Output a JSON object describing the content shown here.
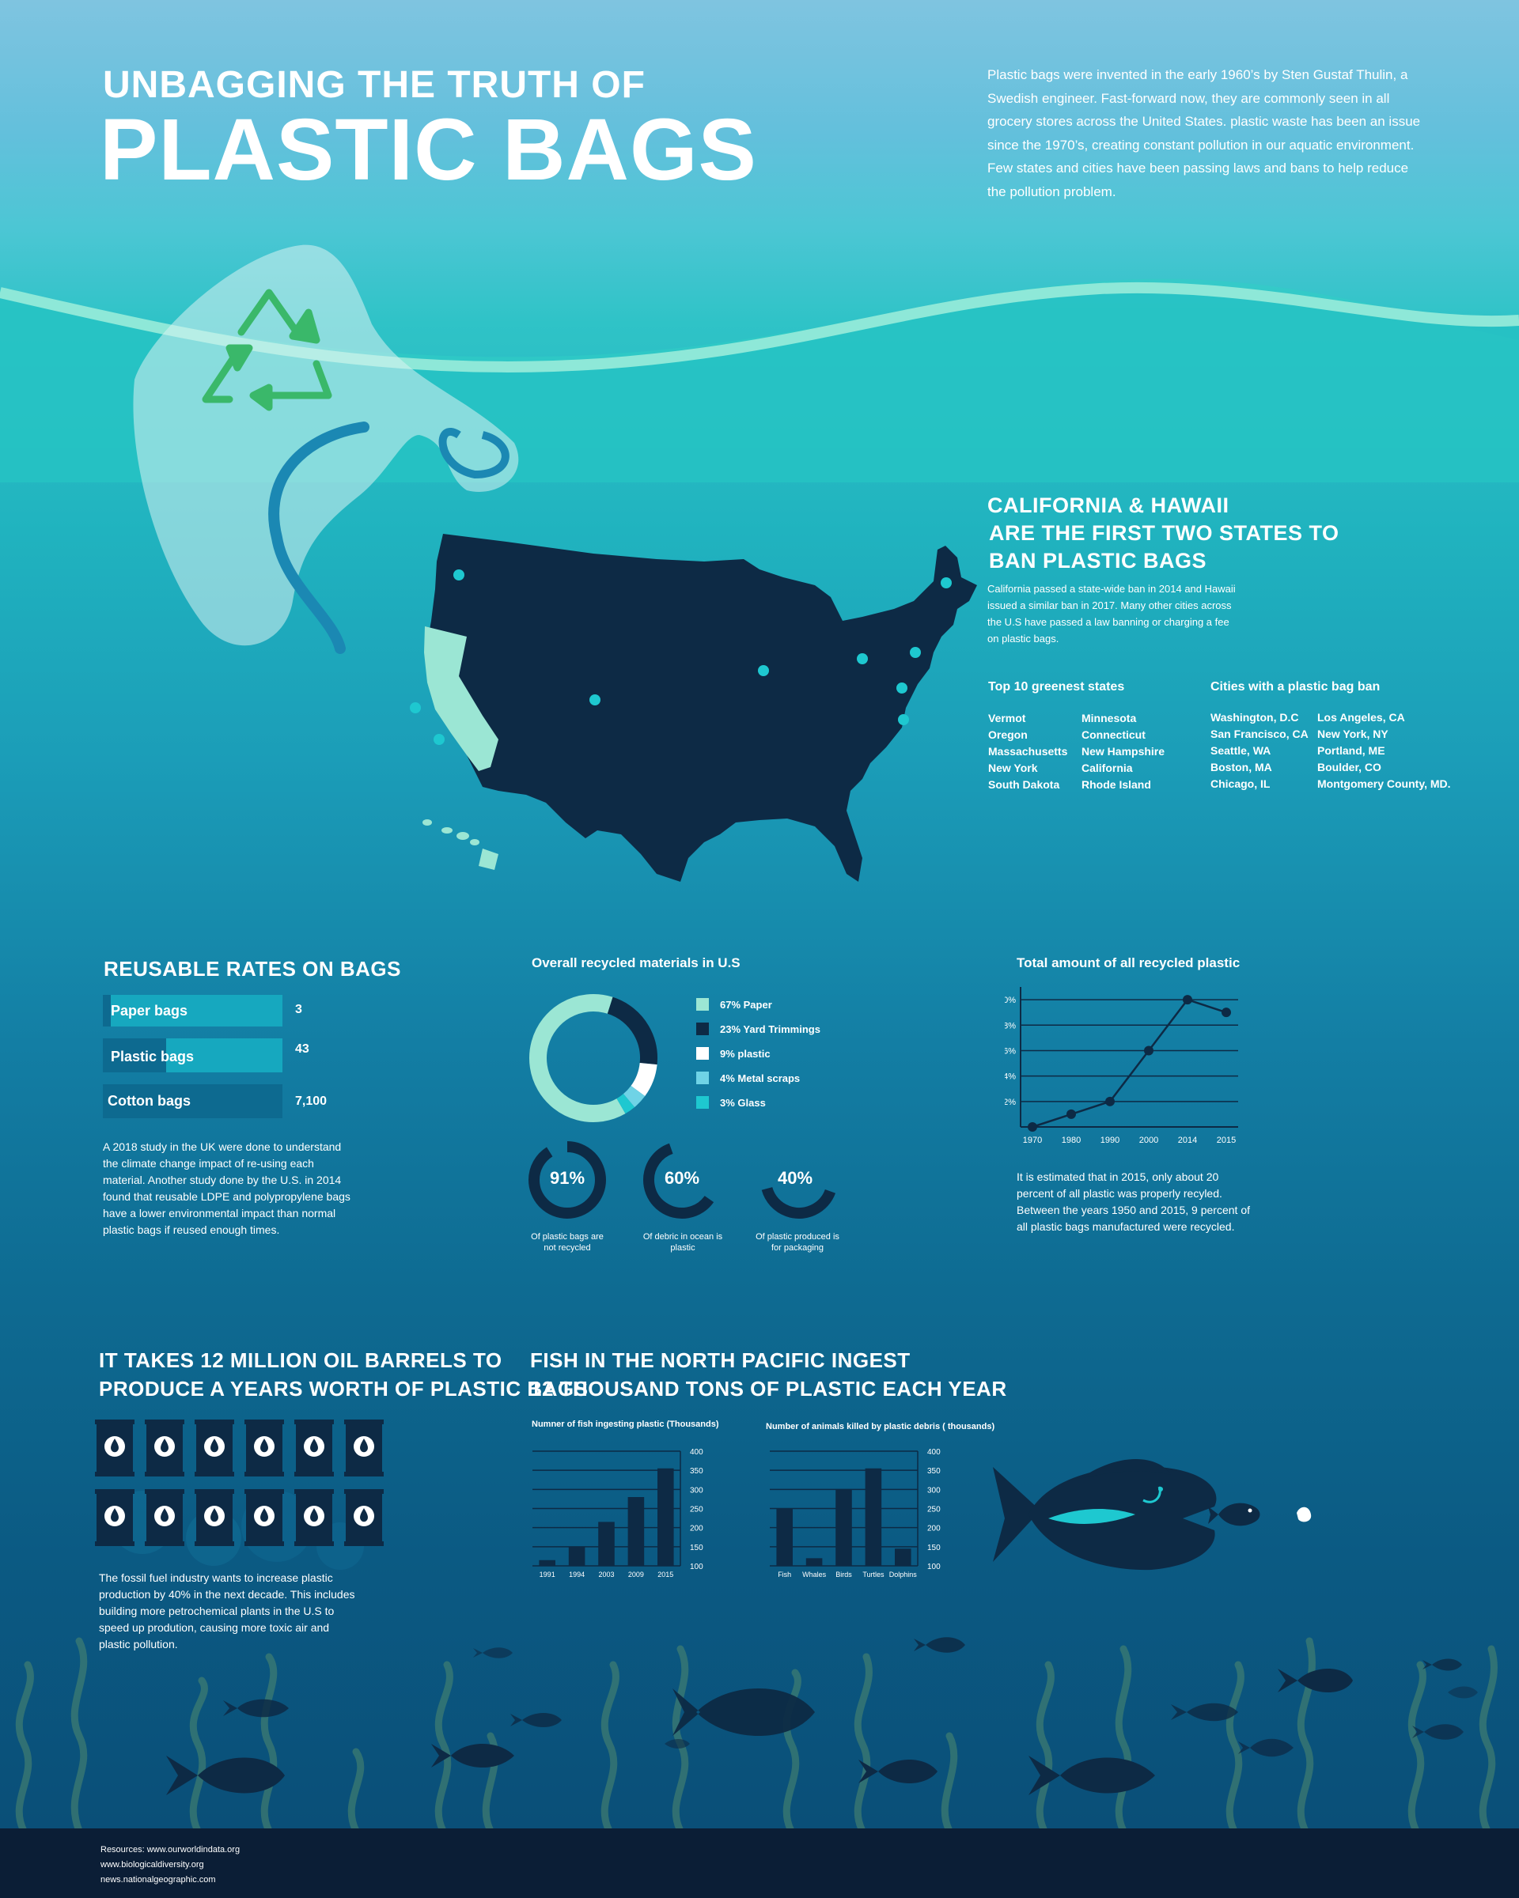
{
  "header": {
    "title_line1": "UNBAGGING THE TRUTH OF",
    "title_line2": "PLASTIC BAGS",
    "intro": "Plastic bags were invented in the early 1960’s by Sten Gustaf Thulin, a Swedish engineer.  Fast-forward now, they are commonly seen in all grocery stores across the United States. plastic waste has been an issue since the 1970’s, creating constant pollution in our aquatic environment. Few states and cities have been passing laws and bans to help reduce the pollution problem."
  },
  "map_section": {
    "heading_line1": "CALIFORNIA & HAWAII",
    "heading_line2": "ARE THE  FIRST TWO  STATES TO",
    "heading_line3": "BAN PLASTIC BAGS",
    "body": "California passed a state-wide ban in 2014 and Hawaii issued a similar ban in 2017. Many other cities across the U.S have passed a law banning or charging a fee on plastic bags.",
    "greenest_title": "Top 10 greenest states",
    "greenest_col1": [
      "Vermot",
      "Oregon",
      "Massachusetts",
      "New York",
      "South Dakota"
    ],
    "greenest_col2": [
      "Minnesota",
      "Connecticut",
      "New Hampshire",
      "California",
      "Rhode Island"
    ],
    "cities_title": "Cities with a plastic bag ban",
    "cities_col1": [
      "Washington,  D.C",
      "San Francisco, CA",
      "Seattle, WA",
      "Boston, MA",
      "Chicago, IL"
    ],
    "cities_col2": [
      "Los Angeles, CA",
      "New York, NY",
      "Portland, ME",
      "Boulder, CO",
      "Montgomery County, MD."
    ]
  },
  "reusable": {
    "heading": "REUSABLE RATES ON BAGS",
    "bars": [
      {
        "label": "Paper bags",
        "value": "3"
      },
      {
        "label": "Plastic bags",
        "value": "43"
      },
      {
        "label": "Cotton bags",
        "value": "7,100"
      }
    ],
    "body": "A 2018 study in the UK  were done to understand the climate change impact of re-using each material. Another study done by the U.S. in 2014 found that reusable LDPE and polypropylene bags have a lower environmental impact than normal plastic bags if reused enough times."
  },
  "recycled_materials": {
    "title": "Overall recycled materials in U.S",
    "legend": [
      "67% Paper",
      "23% Yard Trimmings",
      "9% plastic",
      "4% Metal scraps",
      "3% Glass"
    ],
    "rings": [
      {
        "value": "91%",
        "caption": "Of plastic bags are not recycled"
      },
      {
        "value": "60%",
        "caption": "Of debric in ocean is plastic"
      },
      {
        "value": "40%",
        "caption": "Of plastic produced is for packaging"
      }
    ]
  },
  "recycled_plastic": {
    "title": "Total amount of all recycled plastic",
    "body": "It is estimated that in 2015, only about 20 percent of all plastic was properly recyled. Between the years 1950 and 2015, 9 percent of all plastic bags manufactured were recycled."
  },
  "oil": {
    "heading_line1": "IT TAKES 12 MILLION OIL BARRELS TO",
    "heading_line2": "PRODUCE A YEARS WORTH OF PLASTIC BAGS",
    "body": "The fossil fuel industry wants to increase plastic production by 40% in the next decade. This includes building more petrochemical plants in the U.S to speed up prodution, causing more toxic air and plastic pollution."
  },
  "fish": {
    "heading_line1": "FISH IN THE NORTH PACIFIC INGEST",
    "heading_line2": "12 THOUSAND TONS OF PLASTIC EACH YEAR"
  },
  "footer": {
    "line1": "Resources: www.ourworldindata.org",
    "line2": "www.biologicaldiversity.org",
    "line3": "news.nationalgeographic.com"
  },
  "chart_data": [
    {
      "type": "pie",
      "title": "Overall recycled materials in U.S",
      "categories": [
        "Paper",
        "Yard Trimmings",
        "plastic",
        "Metal scraps",
        "Glass"
      ],
      "values": [
        67,
        23,
        9,
        4,
        3
      ],
      "colors": [
        "#9be6d4",
        "#0d2a45",
        "#ffffff",
        "#6fd3e6",
        "#1ec8d0"
      ]
    },
    {
      "type": "line",
      "title": "Total amount of all recycled plastic",
      "x": [
        "1970",
        "1980",
        "1990",
        "2000",
        "2014",
        "2015"
      ],
      "values": [
        0,
        1,
        2,
        6,
        10,
        9
      ],
      "ytick_labels": [
        "2%",
        "4%",
        "6%",
        "8%",
        "10%"
      ],
      "yticks": [
        2,
        4,
        6,
        8,
        10
      ],
      "ylim": [
        0,
        11
      ]
    },
    {
      "type": "bar",
      "title": "Numner of fish ingesting plastic (Thousands)",
      "categories": [
        "1991",
        "1994",
        "2003",
        "2009",
        "2015"
      ],
      "values": [
        115,
        150,
        215,
        280,
        355
      ],
      "yticks": [
        100,
        150,
        200,
        250,
        300,
        350,
        400
      ],
      "ylim": [
        100,
        400
      ]
    },
    {
      "type": "bar",
      "title": "Number of animals killed by plastic debris ( thousands)",
      "categories": [
        "Fish",
        "Whales",
        "Birds",
        "Turtles",
        "Dolphins"
      ],
      "values": [
        250,
        120,
        300,
        355,
        145
      ],
      "yticks": [
        100,
        150,
        200,
        250,
        300,
        350,
        400
      ],
      "ylim": [
        100,
        400
      ]
    }
  ]
}
